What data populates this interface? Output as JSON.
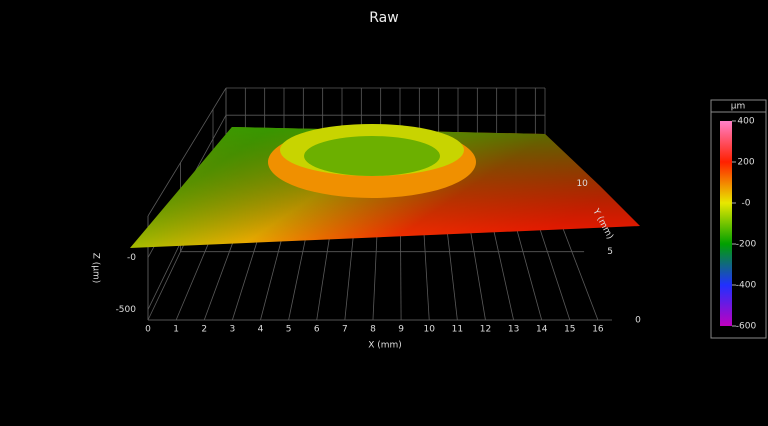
{
  "chart_data": {
    "type": "surface3d",
    "title": "Raw",
    "xlabel": "X (mm)",
    "ylabel": "Y (mm)",
    "zlabel": "Z (µm)",
    "xlim": [
      0,
      16.5
    ],
    "xticks": [
      0,
      1,
      2,
      3,
      4,
      5,
      6,
      7,
      8,
      9,
      10,
      11,
      12,
      13,
      14,
      15,
      16
    ],
    "ylim": [
      0,
      12
    ],
    "yticks": [
      0,
      5,
      10
    ],
    "zlim": [
      -600,
      400
    ],
    "zticks": [
      {
        "value": 0,
        "label": "-0"
      },
      -500
    ],
    "grid": true,
    "colorbar": {
      "label": "µm",
      "lim": [
        -600,
        400
      ],
      "ticks": [
        400,
        200,
        {
          "value": 0,
          "label": "-0"
        },
        -200,
        -400,
        -600
      ],
      "colors": [
        "#c000c0",
        "#2030ff",
        "#00a000",
        "#e8e800",
        "#ff2000",
        "#ff80c8"
      ]
    }
  }
}
